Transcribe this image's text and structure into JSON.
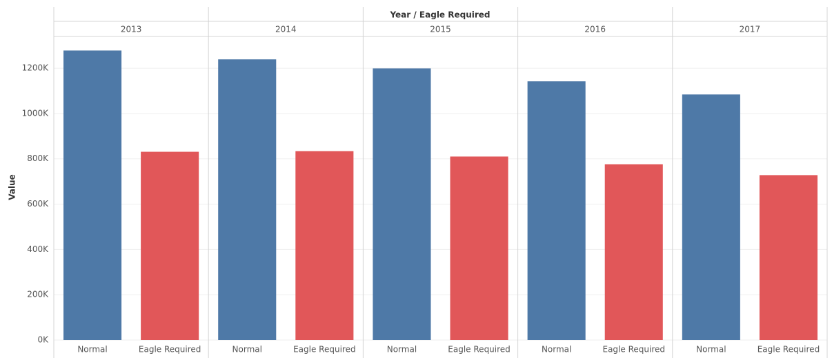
{
  "chart_data": {
    "type": "bar",
    "title": "Year / Eagle Required",
    "y_label": "Value",
    "categories": [
      "2013",
      "2014",
      "2015",
      "2016",
      "2017"
    ],
    "series": [
      {
        "name": "Normal",
        "color": "#4e79a7",
        "values": [
          1278000,
          1239000,
          1199000,
          1142000,
          1084000
        ]
      },
      {
        "name": "Eagle Required",
        "color": "#e15759",
        "values": [
          831000,
          834000,
          810000,
          776000,
          728000
        ]
      }
    ],
    "ylim": [
      0,
      1340000
    ],
    "yticks": [
      {
        "value": 0,
        "label": "0K"
      },
      {
        "value": 200000,
        "label": "200K"
      },
      {
        "value": 400000,
        "label": "400K"
      },
      {
        "value": 600000,
        "label": "600K"
      },
      {
        "value": 800000,
        "label": "800K"
      },
      {
        "value": 1000000,
        "label": "1000K"
      },
      {
        "value": 1200000,
        "label": "1200K"
      }
    ],
    "grid": true
  }
}
